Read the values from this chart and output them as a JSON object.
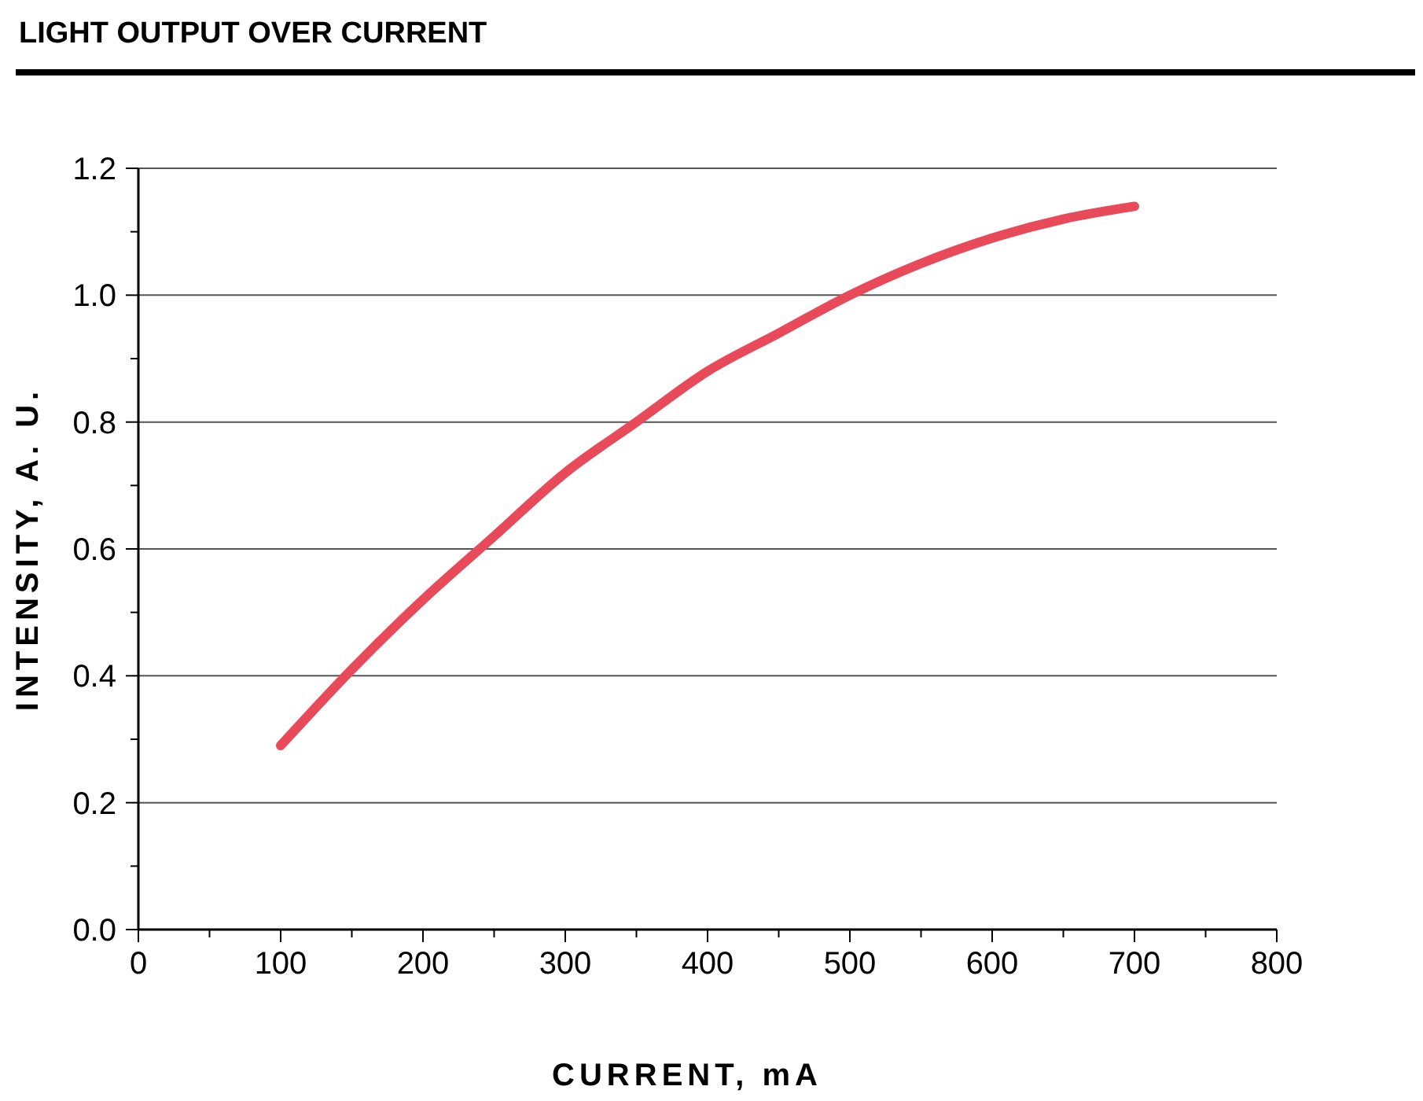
{
  "chart_data": {
    "type": "line",
    "title": "LIGHT OUTPUT OVER CURRENT",
    "xlabel": "CURRENT, mA",
    "ylabel": "INTENSITY, A. U.",
    "x": [
      100,
      150,
      200,
      250,
      300,
      350,
      400,
      450,
      500,
      550,
      600,
      650,
      700
    ],
    "series": [
      {
        "color": "#e84a5a",
        "values": [
          0.29,
          0.41,
          0.52,
          0.62,
          0.72,
          0.8,
          0.88,
          0.94,
          1.0,
          1.05,
          1.09,
          1.12,
          1.14
        ]
      }
    ],
    "xlim": [
      0,
      800
    ],
    "ylim": [
      0,
      1.2
    ],
    "xticks": [
      0,
      {
        "value": 50,
        "label": null
      },
      100,
      {
        "value": 150,
        "label": null
      },
      200,
      {
        "value": 250,
        "label": null
      },
      300,
      {
        "value": 350,
        "label": null
      },
      400,
      {
        "value": 450,
        "label": null
      },
      500,
      {
        "value": 550,
        "label": null
      },
      600,
      {
        "value": 650,
        "label": null
      },
      700,
      {
        "value": 750,
        "label": null
      },
      800
    ],
    "yticks": [
      {
        "value": 0,
        "label": "0.0"
      },
      {
        "value": 0.1,
        "label": null
      },
      {
        "value": 0.2,
        "label": "0.2"
      },
      {
        "value": 0.3,
        "label": null
      },
      {
        "value": 0.4,
        "label": "0.4"
      },
      {
        "value": 0.5,
        "label": null
      },
      {
        "value": 0.6,
        "label": "0.6"
      },
      {
        "value": 0.7,
        "label": null
      },
      {
        "value": 0.8,
        "label": "0.8"
      },
      {
        "value": 0.9,
        "label": null
      },
      {
        "value": 1.0,
        "label": "1.0"
      },
      {
        "value": 1.1,
        "label": null
      },
      {
        "value": 1.2,
        "label": "1.2"
      }
    ],
    "grid": "y",
    "marker": "none",
    "line_style": "solid"
  }
}
